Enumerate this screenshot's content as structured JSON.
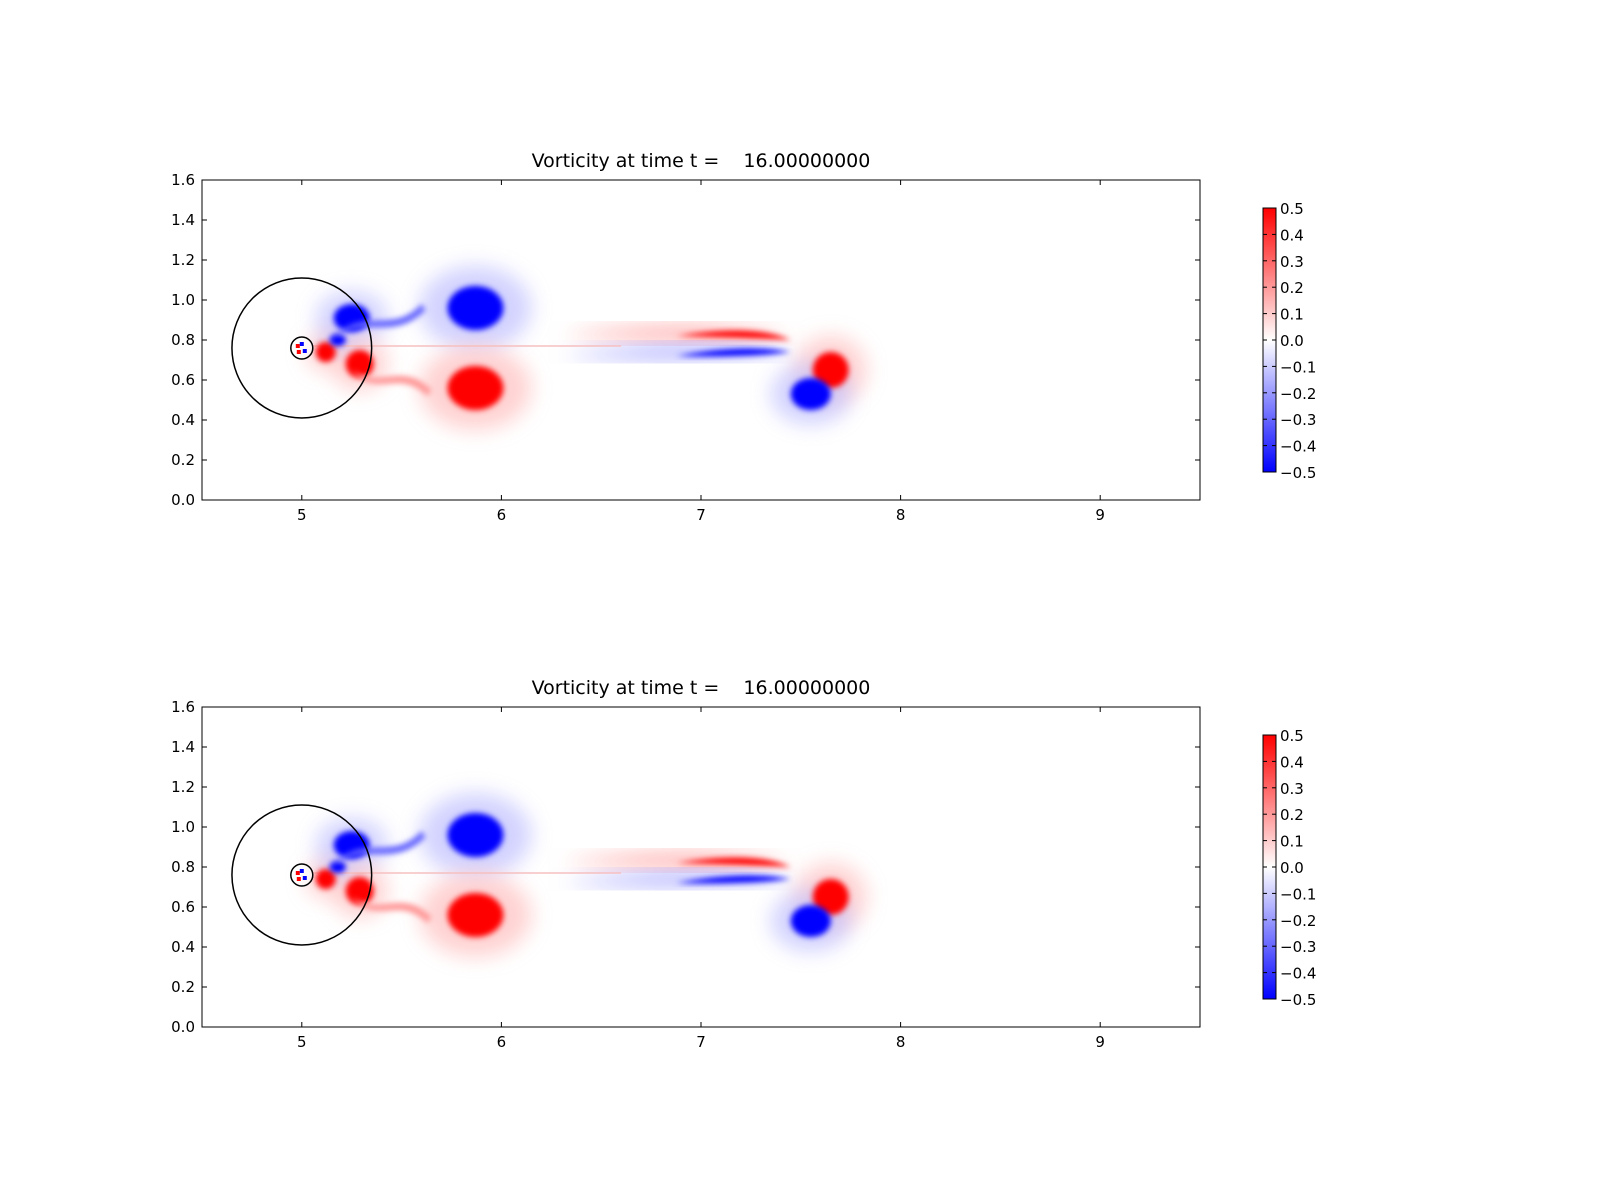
{
  "chart_data": [
    {
      "type": "heatmap",
      "title": "Vorticity at time t =    16.00000000",
      "xlabel": "",
      "ylabel": "",
      "xlim": [
        4.5,
        9.5
      ],
      "ylim": [
        0.0,
        1.6
      ],
      "xticks": [
        5,
        6,
        7,
        8,
        9
      ],
      "xtick_labels": [
        "5",
        "6",
        "7",
        "8",
        "9"
      ],
      "yticks": [
        0.0,
        0.2,
        0.4,
        0.6,
        0.8,
        1.0,
        1.2,
        1.4,
        1.6
      ],
      "ytick_labels": [
        "0.0",
        "0.2",
        "0.4",
        "0.6",
        "0.8",
        "1.0",
        "1.2",
        "1.4",
        "1.6"
      ],
      "grid": false,
      "colormap": "bwr",
      "color_range": [
        -0.5,
        0.5
      ],
      "colorbar_ticks": [
        0.5,
        0.4,
        0.3,
        0.2,
        0.1,
        0.0,
        -0.1,
        -0.2,
        -0.3,
        -0.4,
        -0.5
      ],
      "colorbar_tick_labels": [
        "0.5",
        "0.4",
        "0.3",
        "0.2",
        "0.1",
        "0.0",
        "−0.1",
        "−0.2",
        "−0.3",
        "−0.4",
        "−0.5"
      ],
      "colorbar_colors": {
        "low": "#0000ff",
        "mid": "#ffffff",
        "high": "#ff0000"
      },
      "circles": [
        {
          "cx": 5.0,
          "cy": 0.76,
          "r": 0.35,
          "label": "large-circle"
        },
        {
          "cx": 5.0,
          "cy": 0.76,
          "r": 0.055,
          "label": "small-circle"
        }
      ],
      "vortices": [
        {
          "x": 5.87,
          "y": 0.96,
          "rx": 0.14,
          "ry": 0.11,
          "value": -0.5
        },
        {
          "x": 5.87,
          "y": 0.56,
          "rx": 0.14,
          "ry": 0.11,
          "value": 0.5
        },
        {
          "x": 7.65,
          "y": 0.65,
          "rx": 0.09,
          "ry": 0.09,
          "value": 0.5
        },
        {
          "x": 7.55,
          "y": 0.53,
          "rx": 0.1,
          "ry": 0.08,
          "value": -0.5
        },
        {
          "x": 5.25,
          "y": 0.91,
          "rx": 0.09,
          "ry": 0.07,
          "value": -0.5
        },
        {
          "x": 5.29,
          "y": 0.68,
          "rx": 0.07,
          "ry": 0.07,
          "value": 0.5
        },
        {
          "x": 5.12,
          "y": 0.74,
          "rx": 0.05,
          "ry": 0.05,
          "value": 0.5
        },
        {
          "x": 5.18,
          "y": 0.8,
          "rx": 0.04,
          "ry": 0.03,
          "value": -0.5
        }
      ],
      "shear_layers": [
        {
          "x_start": 6.3,
          "x_end": 7.45,
          "y": 0.82,
          "value": 0.5
        },
        {
          "x_start": 6.3,
          "x_end": 7.45,
          "y": 0.72,
          "value": -0.5
        }
      ]
    },
    {
      "type": "heatmap",
      "title": "Vorticity at time t =    16.00000000",
      "xlabel": "",
      "ylabel": "",
      "xlim": [
        4.5,
        9.5
      ],
      "ylim": [
        0.0,
        1.6
      ],
      "xticks": [
        5,
        6,
        7,
        8,
        9
      ],
      "xtick_labels": [
        "5",
        "6",
        "7",
        "8",
        "9"
      ],
      "yticks": [
        0.0,
        0.2,
        0.4,
        0.6,
        0.8,
        1.0,
        1.2,
        1.4,
        1.6
      ],
      "ytick_labels": [
        "0.0",
        "0.2",
        "0.4",
        "0.6",
        "0.8",
        "1.0",
        "1.2",
        "1.4",
        "1.6"
      ],
      "grid": false,
      "colormap": "bwr",
      "color_range": [
        -0.5,
        0.5
      ],
      "colorbar_ticks": [
        0.5,
        0.4,
        0.3,
        0.2,
        0.1,
        0.0,
        -0.1,
        -0.2,
        -0.3,
        -0.4,
        -0.5
      ],
      "colorbar_tick_labels": [
        "0.5",
        "0.4",
        "0.3",
        "0.2",
        "0.1",
        "0.0",
        "−0.1",
        "−0.2",
        "−0.3",
        "−0.4",
        "−0.5"
      ],
      "colorbar_colors": {
        "low": "#0000ff",
        "mid": "#ffffff",
        "high": "#ff0000"
      },
      "circles": [
        {
          "cx": 5.0,
          "cy": 0.76,
          "r": 0.35,
          "label": "large-circle"
        },
        {
          "cx": 5.0,
          "cy": 0.76,
          "r": 0.055,
          "label": "small-circle"
        }
      ],
      "vortices": [
        {
          "x": 5.87,
          "y": 0.96,
          "rx": 0.14,
          "ry": 0.11,
          "value": -0.5
        },
        {
          "x": 5.87,
          "y": 0.56,
          "rx": 0.14,
          "ry": 0.11,
          "value": 0.5
        },
        {
          "x": 7.65,
          "y": 0.65,
          "rx": 0.09,
          "ry": 0.09,
          "value": 0.5
        },
        {
          "x": 7.55,
          "y": 0.53,
          "rx": 0.1,
          "ry": 0.08,
          "value": -0.5
        },
        {
          "x": 5.25,
          "y": 0.91,
          "rx": 0.09,
          "ry": 0.07,
          "value": -0.5
        },
        {
          "x": 5.29,
          "y": 0.68,
          "rx": 0.07,
          "ry": 0.07,
          "value": 0.5
        },
        {
          "x": 5.12,
          "y": 0.74,
          "rx": 0.05,
          "ry": 0.05,
          "value": 0.5
        },
        {
          "x": 5.18,
          "y": 0.8,
          "rx": 0.04,
          "ry": 0.03,
          "value": -0.5
        }
      ],
      "shear_layers": [
        {
          "x_start": 6.3,
          "x_end": 7.45,
          "y": 0.82,
          "value": 0.5
        },
        {
          "x_start": 6.3,
          "x_end": 7.45,
          "y": 0.72,
          "value": -0.5
        }
      ]
    }
  ]
}
